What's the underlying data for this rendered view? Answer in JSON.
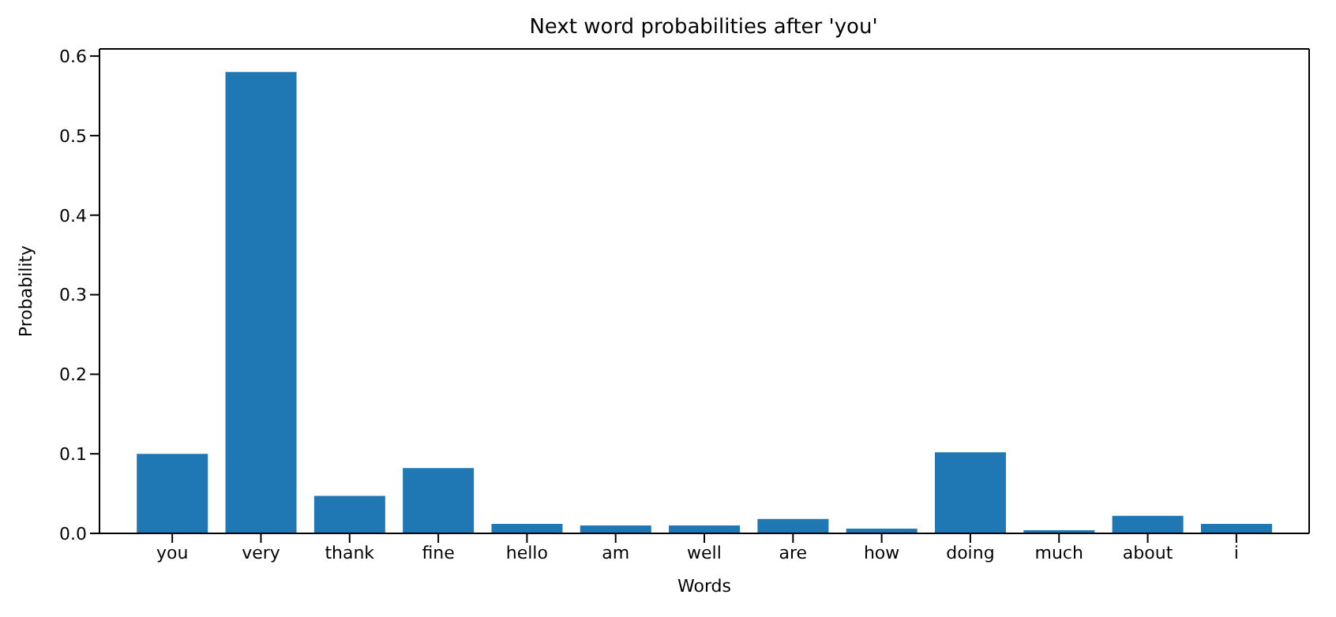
{
  "chart_data": {
    "type": "bar",
    "title": "Next word probabilities after 'you'",
    "xlabel": "Words",
    "ylabel": "Probability",
    "categories": [
      "you",
      "very",
      "thank",
      "fine",
      "hello",
      "am",
      "well",
      "are",
      "how",
      "doing",
      "much",
      "about",
      "i"
    ],
    "values": [
      0.1,
      0.58,
      0.047,
      0.082,
      0.012,
      0.01,
      0.01,
      0.018,
      0.006,
      0.102,
      0.004,
      0.022,
      0.012
    ],
    "color": "#1f77b4",
    "ylim": [
      0,
      0.609
    ],
    "yticks": [
      {
        "value": 0,
        "label": "0.0"
      },
      {
        "value": 0.1,
        "label": "0.1"
      },
      {
        "value": 0.2,
        "label": "0.2"
      },
      {
        "value": 0.3,
        "label": "0.3"
      },
      {
        "value": 0.4,
        "label": "0.4"
      },
      {
        "value": 0.5,
        "label": "0.5"
      },
      {
        "value": 0.6,
        "label": "0.6"
      }
    ],
    "grid": false
  }
}
